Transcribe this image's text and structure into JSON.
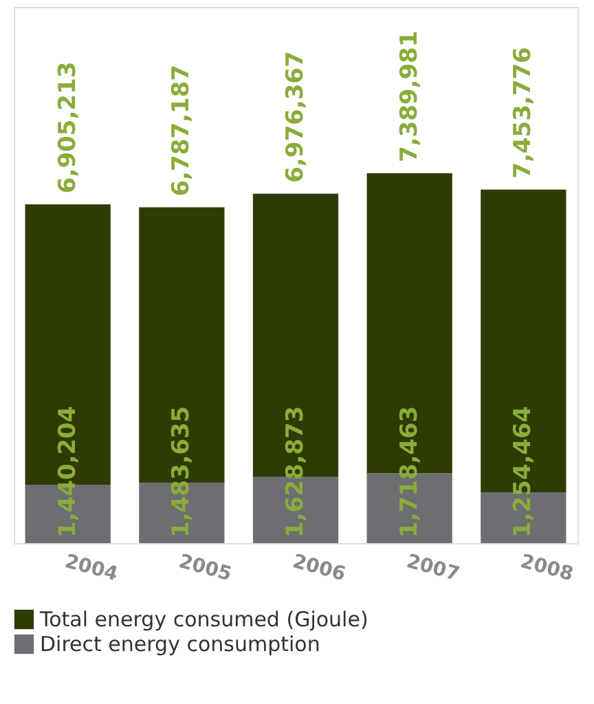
{
  "chart_data": {
    "type": "bar",
    "stacked": true,
    "legend": "bottom",
    "categories": [
      "2004",
      "2005",
      "2006",
      "2007",
      "2008"
    ],
    "series": [
      {
        "name": "Direct energy consumption",
        "color": "#6d6e71",
        "values": [
          1440204,
          1483635,
          1628873,
          1718463,
          1254464
        ],
        "value_labels": [
          "1,440,204",
          "1,483,635",
          "1,628,873",
          "1,718,463",
          "1,254,464"
        ]
      },
      {
        "name": "Total energy consumed (Gjoule)",
        "color": "#2f3b05",
        "values": [
          6905213,
          6787187,
          6976367,
          7389981,
          7453776
        ],
        "value_labels": [
          "6,905,213",
          "6,787,187",
          "6,976,367",
          "7,389,981",
          "7,453,776"
        ]
      }
    ]
  }
}
